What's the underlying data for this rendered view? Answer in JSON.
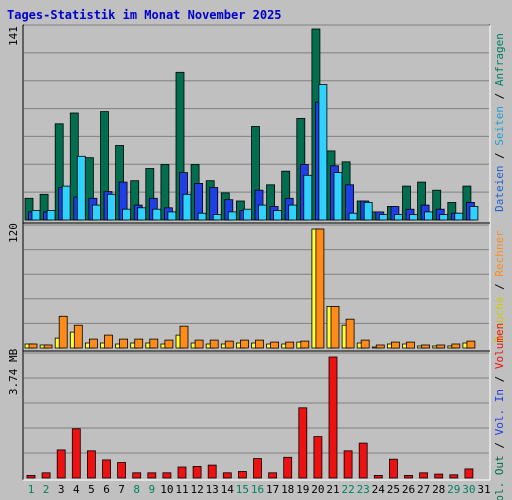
{
  "title": "Tages-Statistik im Monat November 2025",
  "chart_data": [
    {
      "type": "bar",
      "panel": "requests",
      "y_max_label": "141",
      "ylim": [
        0,
        141
      ],
      "categories": [
        "1",
        "2",
        "3",
        "4",
        "5",
        "6",
        "7",
        "8",
        "9",
        "10",
        "11",
        "12",
        "13",
        "14",
        "15",
        "16",
        "17",
        "18",
        "19",
        "20",
        "21",
        "22",
        "23",
        "24",
        "25",
        "26",
        "27",
        "28",
        "29",
        "30",
        "31"
      ],
      "series": [
        {
          "name": "Anfragen",
          "color": "#006e4f",
          "values": [
            16,
            19,
            71,
            79,
            46,
            80,
            55,
            29,
            38,
            41,
            109,
            41,
            29,
            20,
            14,
            69,
            26,
            36,
            75,
            141,
            51,
            43,
            14,
            6,
            10,
            25,
            28,
            22,
            13,
            25,
            0
          ]
        },
        {
          "name": "Seiten",
          "color": "#1e3ee6",
          "values": [
            6,
            6,
            24,
            17,
            16,
            21,
            28,
            11,
            16,
            9,
            35,
            27,
            24,
            15,
            7,
            22,
            10,
            16,
            41,
            87,
            40,
            26,
            14,
            6,
            10,
            8,
            11,
            8,
            5,
            13,
            0
          ]
        },
        {
          "name": "Dateien",
          "color": "#2ed2ff",
          "values": [
            7,
            7,
            25,
            47,
            11,
            19,
            8,
            9,
            8,
            6,
            19,
            5,
            4,
            6,
            8,
            11,
            7,
            11,
            33,
            100,
            35,
            5,
            13,
            4,
            4,
            4,
            6,
            4,
            5,
            10,
            0
          ]
        }
      ],
      "right_labels": [
        {
          "text": "Dateien",
          "color": "#1e5fd6"
        },
        {
          "text": "Seiten",
          "color": "#1e9fd6"
        },
        {
          "text": "Anfragen",
          "color": "#008060"
        }
      ]
    },
    {
      "type": "bar",
      "panel": "visits",
      "y_max_label": "120",
      "ylim": [
        0,
        120
      ],
      "categories": [
        "1",
        "2",
        "3",
        "4",
        "5",
        "6",
        "7",
        "8",
        "9",
        "10",
        "11",
        "12",
        "13",
        "14",
        "15",
        "16",
        "17",
        "18",
        "19",
        "20",
        "21",
        "22",
        "23",
        "24",
        "25",
        "26",
        "27",
        "28",
        "29",
        "30",
        "31"
      ],
      "series": [
        {
          "name": "Besuche",
          "color": "#ffff33",
          "values": [
            4,
            3,
            10,
            16,
            5,
            5,
            4,
            5,
            5,
            4,
            13,
            5,
            4,
            4,
            5,
            5,
            4,
            4,
            6,
            120,
            42,
            23,
            5,
            1,
            4,
            4,
            2,
            2,
            2,
            5,
            0
          ]
        },
        {
          "name": "Rechner",
          "color": "#ff8c1a",
          "values": [
            4,
            3,
            32,
            23,
            9,
            13,
            9,
            9,
            9,
            8,
            22,
            8,
            8,
            7,
            8,
            8,
            6,
            6,
            7,
            120,
            42,
            29,
            8,
            3,
            6,
            6,
            3,
            3,
            4,
            7,
            0
          ]
        }
      ],
      "right_labels": [
        {
          "text": "Besuche",
          "color": "#cccc00"
        },
        {
          "text": "Rechner",
          "color": "#ff8c1a"
        }
      ]
    },
    {
      "type": "bar",
      "panel": "volume",
      "y_max_label": "3.74 MB",
      "ylim": [
        0,
        3.74
      ],
      "categories": [
        "1",
        "2",
        "3",
        "4",
        "5",
        "6",
        "7",
        "8",
        "9",
        "10",
        "11",
        "12",
        "13",
        "14",
        "15",
        "16",
        "17",
        "18",
        "19",
        "20",
        "21",
        "22",
        "23",
        "24",
        "25",
        "26",
        "27",
        "28",
        "29",
        "30",
        "31"
      ],
      "series": [
        {
          "name": "Volumen",
          "color": "#ee1111",
          "values": [
            0.08,
            0.16,
            0.87,
            1.52,
            0.84,
            0.56,
            0.48,
            0.16,
            0.16,
            0.16,
            0.34,
            0.36,
            0.4,
            0.16,
            0.2,
            0.6,
            0.16,
            0.64,
            2.17,
            1.28,
            3.74,
            0.84,
            1.08,
            0.08,
            0.58,
            0.08,
            0.16,
            0.12,
            0.1,
            0.28,
            0
          ]
        }
      ],
      "right_labels": [
        {
          "text": "Vol. Out",
          "color": "#006e4f"
        },
        {
          "text": "Vol. In",
          "color": "#1e3ee6"
        },
        {
          "text": "Volumen",
          "color": "#ee1111"
        }
      ],
      "weekend_days": [
        1,
        2,
        8,
        9,
        15,
        16,
        22,
        23,
        29,
        30
      ],
      "weekday_color": "#000000",
      "weekend_color": "#008060"
    }
  ]
}
